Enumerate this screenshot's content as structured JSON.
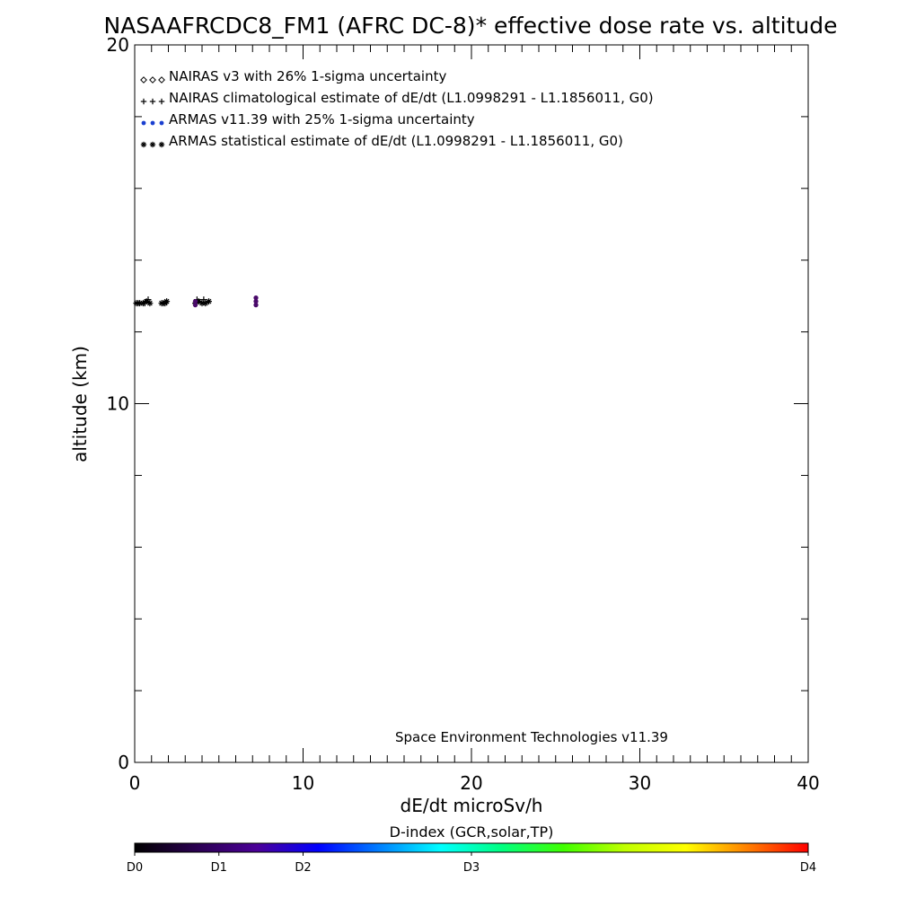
{
  "chart_data": {
    "type": "scatter",
    "title": "NASAAFRCDC8_FM1 (AFRC DC-8)* effective dose rate vs. altitude",
    "xlabel": "dE/dt microSv/h",
    "ylabel": "altitude (km)",
    "xlim": [
      0,
      40
    ],
    "ylim": [
      0,
      20
    ],
    "x_ticks": [
      0,
      10,
      20,
      30,
      40
    ],
    "y_ticks": [
      0,
      10,
      20
    ],
    "x_minor_step": 1,
    "y_minor_step": 2,
    "legend_position": "top-left",
    "legend": [
      {
        "marker": "diamond",
        "symbol": "◇◇◇",
        "color": "#000000",
        "label": "NAIRAS v3 with 26% 1-sigma uncertainty"
      },
      {
        "marker": "plus",
        "symbol": "+++",
        "color": "#000000",
        "label": "NAIRAS climatological estimate of dE/dt (L1.0998291 - L1.1856011, G0)"
      },
      {
        "marker": "dot",
        "symbol": "●●●",
        "color": "#1a3fd0",
        "label": "ARMAS v11.39 with 25% 1-sigma uncertainty"
      },
      {
        "marker": "asterisk",
        "symbol": "***",
        "color": "#000000",
        "label": "ARMAS statistical estimate of dE/dt (L1.0998291 - L1.1856011, G0)"
      }
    ],
    "series": [
      {
        "marker": "asterisk",
        "color": "#000000",
        "points": [
          [
            0.1,
            12.8
          ],
          [
            0.3,
            12.8
          ],
          [
            0.5,
            12.8
          ],
          [
            0.7,
            12.85
          ],
          [
            0.9,
            12.8
          ],
          [
            1.6,
            12.8
          ],
          [
            1.8,
            12.8
          ],
          [
            1.9,
            12.85
          ],
          [
            3.6,
            12.8
          ],
          [
            3.8,
            12.85
          ],
          [
            4.0,
            12.8
          ],
          [
            4.2,
            12.8
          ],
          [
            4.4,
            12.85
          ]
        ]
      },
      {
        "marker": "plus",
        "color": "#000000",
        "points": [
          [
            0.2,
            12.8
          ],
          [
            0.6,
            12.8
          ],
          [
            0.8,
            12.9
          ],
          [
            1.7,
            12.8
          ],
          [
            3.7,
            12.9
          ],
          [
            4.1,
            12.9
          ]
        ]
      },
      {
        "marker": "dot",
        "color": "#4a0a6a",
        "points": [
          [
            3.6,
            12.75
          ],
          [
            3.6,
            12.85
          ],
          [
            7.2,
            12.75
          ],
          [
            7.2,
            12.85
          ],
          [
            7.2,
            12.95
          ]
        ]
      }
    ],
    "annotation": "Space Environment Technologies v11.39",
    "colorbar": {
      "title": "D-index (GCR,solar,TP)",
      "labels": [
        {
          "text": "D0",
          "value": 0.0
        },
        {
          "text": "D1",
          "value": 0.125
        },
        {
          "text": "D2",
          "value": 0.25
        },
        {
          "text": "D3",
          "value": 0.5
        },
        {
          "text": "D4",
          "value": 1.0
        }
      ],
      "stops": [
        "#000000",
        "#2a0050",
        "#4b0098",
        "#0000ff",
        "#0080ff",
        "#00ffff",
        "#00ff80",
        "#40ff00",
        "#c0ff00",
        "#ffff00",
        "#ff8000",
        "#ff0000"
      ]
    }
  }
}
